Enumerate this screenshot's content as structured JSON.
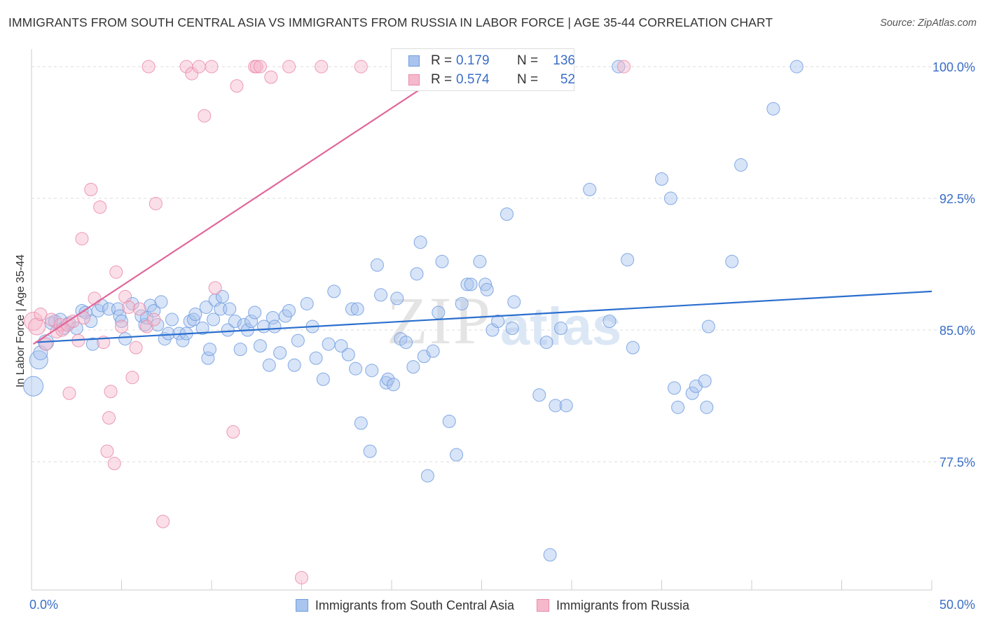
{
  "title": "IMMIGRANTS FROM SOUTH CENTRAL ASIA VS IMMIGRANTS FROM RUSSIA IN LABOR FORCE | AGE 35-44 CORRELATION CHART",
  "source": "Source: ZipAtlas.com",
  "watermark": {
    "part1": "ZIP",
    "part2": "atlas"
  },
  "stats": [
    {
      "r_label": "R =",
      "r_value": "0.179",
      "n_label": "N =",
      "n_value": "136",
      "color": "#a9c4ee",
      "edge": "#6f9ce0"
    },
    {
      "r_label": "R =",
      "r_value": "0.574",
      "n_label": "N =",
      "n_value": "52",
      "color": "#f6b9cc",
      "edge": "#e98aa8"
    }
  ],
  "legend": [
    {
      "label": "Immigrants from South Central Asia",
      "color": "#a9c4ee",
      "edge": "#6f9ce0"
    },
    {
      "label": "Immigrants from Russia",
      "color": "#f6b9cc",
      "edge": "#e98aa8"
    }
  ],
  "chart_data": {
    "type": "scatter",
    "title": "IMMIGRANTS FROM SOUTH CENTRAL ASIA VS IMMIGRANTS FROM RUSSIA IN LABOR FORCE | AGE 35-44 CORRELATION CHART",
    "xlabel": "",
    "ylabel": "In Labor Force | Age 35-44",
    "xlim": [
      0,
      50
    ],
    "ylim": [
      70.2,
      101
    ],
    "x_tick_labels": [
      {
        "value": 0,
        "label": "0.0%"
      },
      {
        "value": 50,
        "label": "50.0%"
      }
    ],
    "y_tick_labels": [
      {
        "value": 77.5,
        "label": "77.5%"
      },
      {
        "value": 85.0,
        "label": "85.0%"
      },
      {
        "value": 92.5,
        "label": "92.5%"
      },
      {
        "value": 100.0,
        "label": "100.0%"
      }
    ],
    "x_minor_ticks": [
      0,
      5,
      10,
      15,
      20,
      25,
      30,
      35,
      40,
      45,
      50
    ],
    "grid": true,
    "legend_position": "bottom",
    "series": [
      {
        "name": "Immigrants from South Central Asia",
        "color": "#a9c4ee",
        "edge": "#6f9ce0",
        "trend": {
          "x": [
            0.2,
            50
          ],
          "y": [
            84.3,
            87.2
          ]
        },
        "points": [
          [
            0.1,
            81.8,
            14
          ],
          [
            0.4,
            83.3,
            13
          ],
          [
            0.5,
            83.7,
            10
          ],
          [
            0.8,
            84.3,
            11
          ],
          [
            1.1,
            85.4,
            9
          ],
          [
            1.3,
            85.5,
            9
          ],
          [
            1.6,
            85.6,
            9
          ],
          [
            1.8,
            85.1,
            9
          ],
          [
            2.1,
            85.4,
            9
          ],
          [
            2.5,
            85.1,
            9
          ],
          [
            2.8,
            86.1,
            9
          ],
          [
            3.0,
            86.0,
            9
          ],
          [
            3.3,
            85.5,
            9
          ],
          [
            3.4,
            84.2,
            9
          ],
          [
            3.7,
            86.1,
            9
          ],
          [
            3.9,
            86.4,
            9
          ],
          [
            4.3,
            86.2,
            9
          ],
          [
            4.8,
            86.2,
            9
          ],
          [
            4.9,
            85.8,
            9
          ],
          [
            5.0,
            85.5,
            9
          ],
          [
            5.2,
            84.5,
            9
          ],
          [
            5.6,
            86.5,
            9
          ],
          [
            6.1,
            85.8,
            9
          ],
          [
            6.3,
            85.3,
            9
          ],
          [
            6.4,
            85.7,
            9
          ],
          [
            6.6,
            86.4,
            9
          ],
          [
            6.8,
            86.1,
            9
          ],
          [
            7.0,
            85.3,
            9
          ],
          [
            7.2,
            86.6,
            9
          ],
          [
            7.4,
            84.5,
            9
          ],
          [
            7.6,
            84.8,
            9
          ],
          [
            7.8,
            85.6,
            9
          ],
          [
            8.2,
            84.8,
            9
          ],
          [
            8.4,
            84.4,
            9
          ],
          [
            8.6,
            84.8,
            9
          ],
          [
            8.8,
            85.5,
            9
          ],
          [
            9.0,
            85.6,
            9
          ],
          [
            9.1,
            85.9,
            9
          ],
          [
            9.5,
            85.1,
            9
          ],
          [
            9.7,
            86.3,
            9
          ],
          [
            9.8,
            83.4,
            9
          ],
          [
            9.9,
            83.9,
            9
          ],
          [
            10.1,
            85.6,
            9
          ],
          [
            10.2,
            86.7,
            9
          ],
          [
            10.5,
            86.2,
            9
          ],
          [
            10.6,
            86.9,
            9
          ],
          [
            10.9,
            85.0,
            9
          ],
          [
            11.0,
            86.2,
            9
          ],
          [
            11.3,
            85.5,
            9
          ],
          [
            11.6,
            83.9,
            9
          ],
          [
            11.8,
            85.3,
            9
          ],
          [
            12.0,
            85.0,
            9
          ],
          [
            12.2,
            85.5,
            9
          ],
          [
            12.4,
            86.0,
            9
          ],
          [
            12.7,
            84.1,
            9
          ],
          [
            12.9,
            85.2,
            9
          ],
          [
            13.2,
            83.0,
            9
          ],
          [
            13.4,
            85.7,
            9
          ],
          [
            13.5,
            85.2,
            9
          ],
          [
            13.8,
            83.7,
            9
          ],
          [
            14.1,
            85.8,
            9
          ],
          [
            14.3,
            86.1,
            9
          ],
          [
            14.6,
            83.0,
            9
          ],
          [
            14.8,
            84.4,
            9
          ],
          [
            15.3,
            86.5,
            9
          ],
          [
            15.6,
            85.2,
            9
          ],
          [
            15.8,
            83.4,
            9
          ],
          [
            16.2,
            82.2,
            9
          ],
          [
            16.5,
            84.2,
            9
          ],
          [
            16.8,
            87.2,
            9
          ],
          [
            17.2,
            84.1,
            9
          ],
          [
            17.6,
            83.6,
            9
          ],
          [
            17.8,
            86.2,
            9
          ],
          [
            18.0,
            82.8,
            9
          ],
          [
            18.1,
            86.2,
            9
          ],
          [
            18.3,
            79.7,
            9
          ],
          [
            18.8,
            78.1,
            9
          ],
          [
            18.9,
            82.7,
            9
          ],
          [
            19.2,
            88.7,
            9
          ],
          [
            19.4,
            87.0,
            9
          ],
          [
            19.7,
            82.0,
            9
          ],
          [
            19.8,
            82.2,
            9
          ],
          [
            20.1,
            81.9,
            9
          ],
          [
            20.3,
            86.8,
            9
          ],
          [
            20.5,
            84.5,
            9
          ],
          [
            20.8,
            84.3,
            9
          ],
          [
            21.2,
            82.9,
            9
          ],
          [
            21.4,
            88.2,
            9
          ],
          [
            21.6,
            90.0,
            9
          ],
          [
            21.8,
            83.5,
            9
          ],
          [
            22.0,
            76.7,
            9
          ],
          [
            22.3,
            83.8,
            9
          ],
          [
            22.6,
            86.0,
            9
          ],
          [
            22.8,
            88.9,
            9
          ],
          [
            23.2,
            79.8,
            9
          ],
          [
            23.6,
            77.9,
            9
          ],
          [
            23.9,
            86.5,
            9
          ],
          [
            24.2,
            87.6,
            9
          ],
          [
            24.4,
            87.6,
            9
          ],
          [
            24.9,
            88.9,
            9
          ],
          [
            25.2,
            87.6,
            9
          ],
          [
            25.3,
            87.3,
            9
          ],
          [
            25.6,
            85.0,
            9
          ],
          [
            25.9,
            85.5,
            9
          ],
          [
            26.4,
            91.6,
            9
          ],
          [
            26.7,
            85.1,
            9
          ],
          [
            26.8,
            86.6,
            9
          ],
          [
            28.2,
            81.3,
            9
          ],
          [
            28.6,
            84.3,
            9
          ],
          [
            28.8,
            72.2,
            9
          ],
          [
            29.1,
            80.7,
            9
          ],
          [
            29.7,
            80.7,
            9
          ],
          [
            29.4,
            85.1,
            9
          ],
          [
            31.0,
            93.0,
            9
          ],
          [
            32.1,
            85.5,
            9
          ],
          [
            32.6,
            100.0,
            9
          ],
          [
            33.1,
            89.0,
            9
          ],
          [
            33.4,
            84.0,
            9
          ],
          [
            35.0,
            93.6,
            9
          ],
          [
            35.5,
            92.5,
            9
          ],
          [
            35.7,
            81.7,
            9
          ],
          [
            35.9,
            80.6,
            9
          ],
          [
            36.7,
            81.4,
            9
          ],
          [
            36.9,
            81.8,
            9
          ],
          [
            37.4,
            82.1,
            9
          ],
          [
            37.5,
            80.6,
            9
          ],
          [
            37.6,
            85.2,
            9
          ],
          [
            38.9,
            88.9,
            9
          ],
          [
            39.4,
            94.4,
            9
          ],
          [
            41.2,
            97.6,
            9
          ],
          [
            42.5,
            100.0,
            9
          ]
        ]
      },
      {
        "name": "Immigrants from Russia",
        "color": "#f6b9cc",
        "edge": "#e98aa8",
        "trend": {
          "x": [
            0.1,
            23.5
          ],
          "y": [
            84.2,
            100.0
          ]
        },
        "points": [
          [
            0.1,
            85.5,
            13
          ],
          [
            0.3,
            85.2,
            12
          ],
          [
            0.5,
            85.9,
            9
          ],
          [
            0.8,
            84.2,
            9
          ],
          [
            1.1,
            85.6,
            9
          ],
          [
            1.4,
            84.9,
            9
          ],
          [
            1.6,
            85.3,
            9
          ],
          [
            1.7,
            85.0,
            9
          ],
          [
            2.0,
            85.3,
            9
          ],
          [
            2.3,
            85.5,
            9
          ],
          [
            2.1,
            81.4,
            9
          ],
          [
            2.6,
            84.4,
            9
          ],
          [
            2.8,
            90.2,
            9
          ],
          [
            2.9,
            85.7,
            9
          ],
          [
            3.3,
            93.0,
            9
          ],
          [
            3.5,
            86.8,
            9
          ],
          [
            3.8,
            92.0,
            9
          ],
          [
            4.0,
            84.3,
            9
          ],
          [
            4.2,
            78.1,
            9
          ],
          [
            4.3,
            80.0,
            9
          ],
          [
            4.4,
            81.5,
            9
          ],
          [
            4.6,
            77.4,
            9
          ],
          [
            4.7,
            88.3,
            9
          ],
          [
            5.0,
            85.2,
            9
          ],
          [
            5.2,
            86.9,
            9
          ],
          [
            5.4,
            86.3,
            9
          ],
          [
            5.6,
            82.3,
            9
          ],
          [
            5.8,
            84.0,
            9
          ],
          [
            6.0,
            86.2,
            9
          ],
          [
            6.4,
            85.2,
            9
          ],
          [
            6.8,
            85.6,
            9
          ],
          [
            6.9,
            92.2,
            9
          ],
          [
            6.5,
            100.0,
            9
          ],
          [
            7.3,
            74.1,
            9
          ],
          [
            8.6,
            100.0,
            9
          ],
          [
            8.9,
            99.6,
            9
          ],
          [
            9.3,
            100.0,
            9
          ],
          [
            9.6,
            97.2,
            9
          ],
          [
            10.0,
            100.0,
            9
          ],
          [
            10.2,
            87.4,
            9
          ],
          [
            11.2,
            79.2,
            9
          ],
          [
            11.4,
            98.9,
            9
          ],
          [
            12.4,
            100.0,
            9
          ],
          [
            12.5,
            100.0,
            9
          ],
          [
            12.7,
            100.0,
            9
          ],
          [
            13.3,
            99.4,
            9
          ],
          [
            14.3,
            100.0,
            9
          ],
          [
            15.0,
            70.9,
            9
          ],
          [
            16.1,
            100.0,
            9
          ],
          [
            18.3,
            100.0,
            9
          ],
          [
            22.0,
            100.0,
            9
          ],
          [
            32.9,
            100.0,
            9
          ]
        ]
      }
    ]
  }
}
